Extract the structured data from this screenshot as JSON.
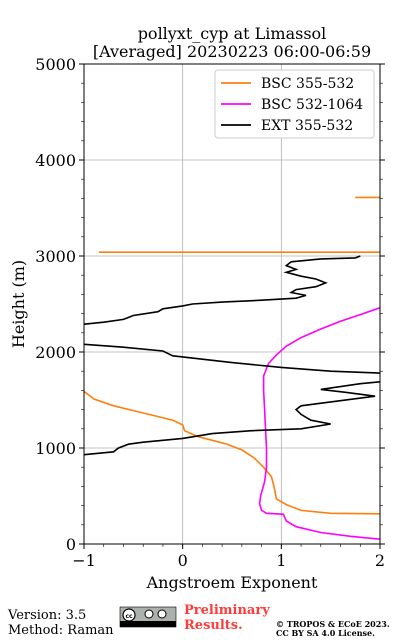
{
  "chart_data": {
    "type": "line",
    "title": "pollyxt_cyp at Limassol",
    "subtitle": "[Averaged] 20230223 06:00-06:59",
    "xlabel": "Angstroem Exponent",
    "ylabel": "Height (m)",
    "xlim": [
      -1,
      2
    ],
    "ylim": [
      0,
      5000
    ],
    "xticks": [
      -1,
      0,
      1,
      2
    ],
    "yticks": [
      0,
      1000,
      2000,
      3000,
      4000,
      5000
    ],
    "grid": true,
    "legend_position": "top-right",
    "series": [
      {
        "name": "BSC 355-532",
        "color": "#ff7f0e",
        "points": [
          [
            1.75,
            3610
          ],
          [
            2.0,
            3610
          ],
          [
            null,
            null
          ],
          [
            -0.85,
            3040
          ],
          [
            2.0,
            3040
          ],
          [
            null,
            null
          ],
          [
            -1.0,
            1590
          ],
          [
            -0.9,
            1510
          ],
          [
            -0.7,
            1440
          ],
          [
            -0.5,
            1390
          ],
          [
            -0.3,
            1340
          ],
          [
            -0.1,
            1290
          ],
          [
            0.0,
            1240
          ],
          [
            0.02,
            1180
          ],
          [
            0.15,
            1120
          ],
          [
            0.3,
            1080
          ],
          [
            0.45,
            1040
          ],
          [
            0.6,
            980
          ],
          [
            0.72,
            900
          ],
          [
            0.82,
            800
          ],
          [
            0.9,
            700
          ],
          [
            0.93,
            580
          ],
          [
            0.95,
            470
          ],
          [
            1.05,
            410
          ],
          [
            1.2,
            350
          ],
          [
            1.5,
            320
          ],
          [
            2.0,
            315
          ]
        ]
      },
      {
        "name": "BSC 532-1064",
        "color": "#ff00ff",
        "points": [
          [
            2.0,
            2460
          ],
          [
            1.8,
            2390
          ],
          [
            1.6,
            2320
          ],
          [
            1.4,
            2240
          ],
          [
            1.2,
            2150
          ],
          [
            1.05,
            2060
          ],
          [
            0.95,
            1970
          ],
          [
            0.87,
            1880
          ],
          [
            0.82,
            1750
          ],
          [
            0.82,
            1600
          ],
          [
            0.83,
            1400
          ],
          [
            0.84,
            1200
          ],
          [
            0.85,
            1000
          ],
          [
            0.85,
            800
          ],
          [
            0.83,
            650
          ],
          [
            0.79,
            500
          ],
          [
            0.78,
            420
          ],
          [
            0.8,
            350
          ],
          [
            0.85,
            320
          ],
          [
            1.02,
            310
          ],
          [
            1.05,
            240
          ],
          [
            1.15,
            180
          ],
          [
            1.4,
            120
          ],
          [
            1.7,
            80
          ],
          [
            2.0,
            50
          ]
        ]
      },
      {
        "name": "EXT 355-532",
        "color": "#000000",
        "points": [
          [
            1.8,
            3000
          ],
          [
            1.75,
            2980
          ],
          [
            1.4,
            2970
          ],
          [
            1.1,
            2940
          ],
          [
            1.05,
            2900
          ],
          [
            1.15,
            2860
          ],
          [
            1.05,
            2830
          ],
          [
            1.2,
            2790
          ],
          [
            1.35,
            2760
          ],
          [
            1.45,
            2720
          ],
          [
            1.35,
            2680
          ],
          [
            1.15,
            2650
          ],
          [
            1.1,
            2620
          ],
          [
            1.25,
            2590
          ],
          [
            1.15,
            2560
          ],
          [
            0.8,
            2540
          ],
          [
            0.4,
            2520
          ],
          [
            0.1,
            2500
          ],
          [
            0.0,
            2480
          ],
          [
            -0.2,
            2450
          ],
          [
            -0.25,
            2420
          ],
          [
            -0.5,
            2380
          ],
          [
            -0.6,
            2340
          ],
          [
            -0.8,
            2310
          ],
          [
            -1.0,
            2290
          ],
          [
            null,
            null
          ],
          [
            -1.0,
            2080
          ],
          [
            -0.6,
            2050
          ],
          [
            -0.2,
            2010
          ],
          [
            -0.1,
            1960
          ],
          [
            0.5,
            1890
          ],
          [
            1.0,
            1840
          ],
          [
            1.5,
            1800
          ],
          [
            2.0,
            1780
          ],
          [
            null,
            null
          ],
          [
            2.0,
            1690
          ],
          [
            1.8,
            1670
          ],
          [
            1.6,
            1640
          ],
          [
            1.4,
            1610
          ],
          [
            1.65,
            1580
          ],
          [
            1.95,
            1540
          ],
          [
            1.5,
            1480
          ],
          [
            1.2,
            1440
          ],
          [
            1.15,
            1400
          ],
          [
            1.2,
            1350
          ],
          [
            1.3,
            1290
          ],
          [
            1.5,
            1250
          ],
          [
            1.2,
            1200
          ],
          [
            0.7,
            1180
          ],
          [
            0.3,
            1150
          ],
          [
            0.0,
            1100
          ],
          [
            -0.4,
            1060
          ],
          [
            -0.55,
            1040
          ],
          [
            -0.65,
            1000
          ],
          [
            -0.7,
            960
          ],
          [
            -1.0,
            930
          ]
        ]
      }
    ]
  },
  "footer": {
    "version": "Version: 3.5",
    "method": "Method: Raman",
    "preliminary_line1": "Preliminary",
    "preliminary_line2": "Results.",
    "preliminary_color": "#ff3b3b",
    "copyright_line1": "© TROPOS & ECoE 2023.",
    "copyright_line2": "CC BY SA 4.0 License.",
    "license_badge": "cc-by-sa-badge"
  }
}
